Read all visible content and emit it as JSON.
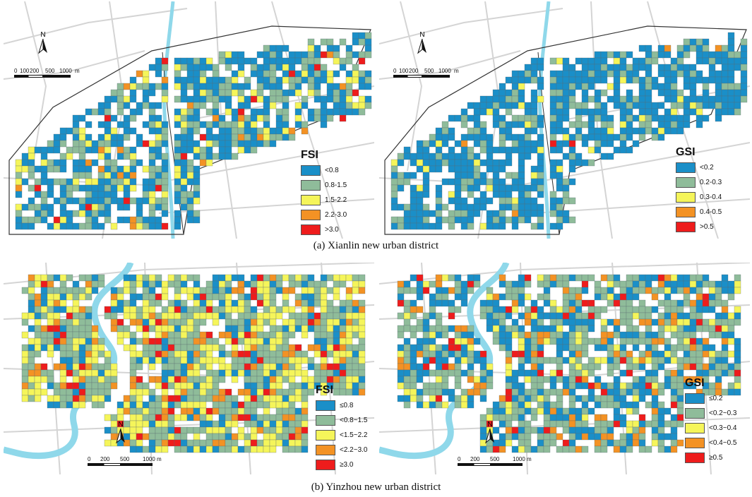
{
  "panels": {
    "a": {
      "caption": "(a)  Xianlin new urban district",
      "maps": [
        {
          "legend": {
            "title": "FSI",
            "items": [
              {
                "label": "<0.8",
                "color": "#1a8fc8"
              },
              {
                "label": "0.8-1.5",
                "color": "#8fbc9a"
              },
              {
                "label": "1.5-2.2",
                "color": "#f5f55a"
              },
              {
                "label": "2.2-3.0",
                "color": "#f39224"
              },
              {
                "label": ">3.0",
                "color": "#ee1c1c"
              }
            ]
          },
          "north": "N",
          "scale": {
            "ticks": [
              "0",
              "100",
              "200",
              "500",
              "1000"
            ],
            "unit": "m"
          }
        },
        {
          "legend": {
            "title": "GSI",
            "items": [
              {
                "label": "<0.2",
                "color": "#1a8fc8"
              },
              {
                "label": "0.2-0.3",
                "color": "#8fbc9a"
              },
              {
                "label": "0.3-0.4",
                "color": "#f5f55a"
              },
              {
                "label": "0.4-0.5",
                "color": "#f39224"
              },
              {
                "label": ">0.5",
                "color": "#ee1c1c"
              }
            ]
          },
          "north": "N",
          "scale": {
            "ticks": [
              "0",
              "100",
              "200",
              "500",
              "1000"
            ],
            "unit": "m"
          }
        }
      ]
    },
    "b": {
      "caption": "(b)  Yinzhou new urban district",
      "maps": [
        {
          "legend": {
            "title": "FSI",
            "items": [
              {
                "label": "≤0.8",
                "color": "#1a8fc8"
              },
              {
                "label": "<0.8~1.5",
                "color": "#8fbc9a"
              },
              {
                "label": "<1.5~2.2",
                "color": "#f5f55a"
              },
              {
                "label": "<2.2~3.0",
                "color": "#f39224"
              },
              {
                "label": "≥3.0",
                "color": "#ee1c1c"
              }
            ]
          },
          "north": "N",
          "scale": {
            "ticks": [
              "0",
              "200",
              "500",
              "1000 m"
            ],
            "unit": ""
          }
        },
        {
          "legend": {
            "title": "GSI",
            "items": [
              {
                "label": "≤0.2",
                "color": "#1a8fc8"
              },
              {
                "label": "<0.2~0.3",
                "color": "#8fbc9a"
              },
              {
                "label": "<0.3~0.4",
                "color": "#f5f55a"
              },
              {
                "label": "<0.4~0.5",
                "color": "#f39224"
              },
              {
                "label": "≥0.5",
                "color": "#ee1c1c"
              }
            ]
          },
          "north": "N",
          "scale": {
            "ticks": [
              "0",
              "200",
              "500",
              "1000 m"
            ],
            "unit": ""
          }
        }
      ]
    }
  },
  "colors": {
    "water": "#8fd8ea",
    "road": "#d4d4d4",
    "boundary": "#333333"
  }
}
